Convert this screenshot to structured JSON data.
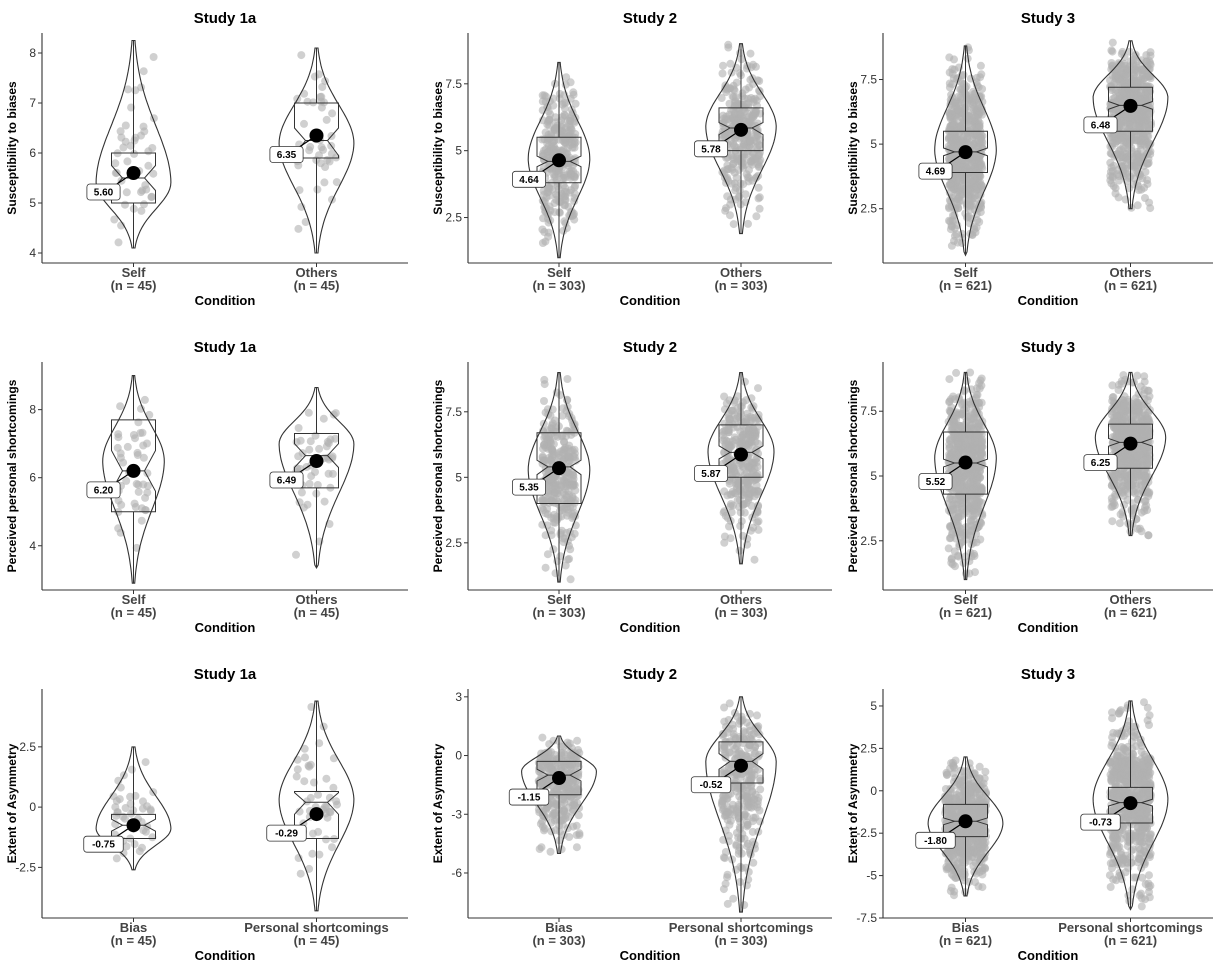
{
  "figure": {
    "x_axis_label": "Condition",
    "point_color": "#b0b0b0",
    "outline_color": "#333333",
    "mean_color": "#000000"
  },
  "chart_data": [
    {
      "type": "violin",
      "title": "Study 1a",
      "ylabel": "Susceptibility to biases",
      "ylim": [
        3.8,
        8.4
      ],
      "yticks": [
        4,
        5,
        6,
        7,
        8
      ],
      "groups": [
        {
          "name": "Self",
          "n_label": "(n = 45)",
          "mean": 5.6,
          "mean_label": "5.60",
          "q1": 5.0,
          "median": 5.5,
          "q3": 6.0,
          "notch": [
            5.25,
            5.75
          ],
          "min": 4.1,
          "max": 8.25,
          "mode": 5.4,
          "width": 0.85
        },
        {
          "name": "Others",
          "n_label": "(n = 45)",
          "mean": 6.35,
          "mean_label": "6.35",
          "q1": 5.9,
          "median": 6.25,
          "q3": 7.0,
          "notch": [
            5.95,
            6.5
          ],
          "min": 4.0,
          "max": 8.1,
          "mode": 6.2,
          "width": 0.85
        }
      ]
    },
    {
      "type": "violin",
      "title": "Study 2",
      "ylabel": "Susceptibility to biases",
      "ylim": [
        0.8,
        9.4
      ],
      "yticks": [
        2.5,
        5.0,
        7.5
      ],
      "groups": [
        {
          "name": "Self",
          "n_label": "(n = 303)",
          "mean": 4.64,
          "mean_label": "4.64",
          "q1": 3.8,
          "median": 4.6,
          "q3": 5.5,
          "notch": [
            4.4,
            4.8
          ],
          "min": 1.0,
          "max": 8.3,
          "mode": 4.7,
          "width": 0.7
        },
        {
          "name": "Others",
          "n_label": "(n = 303)",
          "mean": 5.78,
          "mean_label": "5.78",
          "q1": 5.0,
          "median": 5.85,
          "q3": 6.6,
          "notch": [
            5.6,
            6.05
          ],
          "min": 1.9,
          "max": 9.0,
          "mode": 5.9,
          "width": 0.8
        }
      ]
    },
    {
      "type": "violin",
      "title": "Study 3",
      "ylabel": "Susceptibility to biases",
      "ylim": [
        0.4,
        9.3
      ],
      "yticks": [
        2.5,
        5.0,
        7.5
      ],
      "groups": [
        {
          "name": "Self",
          "n_label": "(n = 621)",
          "mean": 4.69,
          "mean_label": "4.69",
          "q1": 3.9,
          "median": 4.7,
          "q3": 5.5,
          "notch": [
            4.55,
            4.85
          ],
          "min": 0.7,
          "max": 8.8,
          "mode": 4.8,
          "width": 0.7
        },
        {
          "name": "Others",
          "n_label": "(n = 621)",
          "mean": 6.48,
          "mean_label": "6.48",
          "q1": 5.5,
          "median": 6.5,
          "q3": 7.2,
          "notch": [
            6.35,
            6.65
          ],
          "min": 2.5,
          "max": 9.0,
          "mode": 6.8,
          "width": 0.85
        }
      ]
    },
    {
      "type": "violin",
      "title": "Study 1a",
      "ylabel": "Perceived personal shortcomings",
      "ylim": [
        2.7,
        9.4
      ],
      "yticks": [
        4,
        6,
        8
      ],
      "groups": [
        {
          "name": "Self",
          "n_label": "(n = 45)",
          "mean": 6.2,
          "mean_label": "6.20",
          "q1": 5.0,
          "median": 6.2,
          "q3": 7.7,
          "notch": [
            5.6,
            6.8
          ],
          "min": 2.9,
          "max": 9.0,
          "mode": 6.5,
          "width": 0.7
        },
        {
          "name": "Others",
          "n_label": "(n = 45)",
          "mean": 6.49,
          "mean_label": "6.49",
          "q1": 5.7,
          "median": 6.65,
          "q3": 7.3,
          "notch": [
            6.3,
            7.0
          ],
          "min": 3.35,
          "max": 8.65,
          "mode": 7.0,
          "width": 0.85
        }
      ]
    },
    {
      "type": "violin",
      "title": "Study 2",
      "ylabel": "Perceived personal shortcomings",
      "ylim": [
        0.7,
        9.4
      ],
      "yticks": [
        2.5,
        5.0,
        7.5
      ],
      "groups": [
        {
          "name": "Self",
          "n_label": "(n = 303)",
          "mean": 5.35,
          "mean_label": "5.35",
          "q1": 4.0,
          "median": 5.4,
          "q3": 6.7,
          "notch": [
            5.1,
            5.65
          ],
          "min": 1.0,
          "max": 9.0,
          "mode": 5.3,
          "width": 0.7
        },
        {
          "name": "Others",
          "n_label": "(n = 303)",
          "mean": 5.87,
          "mean_label": "5.87",
          "q1": 5.0,
          "median": 5.95,
          "q3": 7.0,
          "notch": [
            5.7,
            6.2
          ],
          "min": 1.7,
          "max": 9.0,
          "mode": 6.0,
          "width": 0.75
        }
      ]
    },
    {
      "type": "violin",
      "title": "Study 3",
      "ylabel": "Perceived personal shortcomings",
      "ylim": [
        0.6,
        9.4
      ],
      "yticks": [
        2.5,
        5.0,
        7.5
      ],
      "groups": [
        {
          "name": "Self",
          "n_label": "(n = 621)",
          "mean": 5.52,
          "mean_label": "5.52",
          "q1": 4.3,
          "median": 5.5,
          "q3": 6.7,
          "notch": [
            5.35,
            5.65
          ],
          "min": 1.0,
          "max": 9.0,
          "mode": 5.7,
          "width": 0.7
        },
        {
          "name": "Others",
          "n_label": "(n = 621)",
          "mean": 6.25,
          "mean_label": "6.25",
          "q1": 5.3,
          "median": 6.3,
          "q3": 7.0,
          "notch": [
            6.15,
            6.45
          ],
          "min": 2.7,
          "max": 9.0,
          "mode": 6.5,
          "width": 0.8
        }
      ]
    },
    {
      "type": "violin",
      "title": "Study 1a",
      "ylabel": "Extent of Asymmetry",
      "ylim": [
        -4.6,
        4.9
      ],
      "yticks": [
        -2.5,
        0.0,
        2.5
      ],
      "groups": [
        {
          "name": "Bias",
          "n_label": "(n = 45)",
          "mean": -0.75,
          "mean_label": "-0.75",
          "q1": -1.3,
          "median": -0.75,
          "q3": -0.3,
          "notch": [
            -1.0,
            -0.5
          ],
          "min": -2.6,
          "max": 2.5,
          "mode": -0.9,
          "width": 0.85
        },
        {
          "name": "Personal shortcomings",
          "n_label": "(n = 45)",
          "mean": -0.29,
          "mean_label": "-0.29",
          "q1": -1.3,
          "median": 0.2,
          "q3": 0.65,
          "notch": [
            -0.3,
            0.6
          ],
          "min": -4.3,
          "max": 4.4,
          "mode": 0.3,
          "width": 0.85
        }
      ]
    },
    {
      "type": "violin",
      "title": "Study 2",
      "ylabel": "Extent of Asymmetry",
      "ylim": [
        -8.3,
        3.4
      ],
      "yticks": [
        -6,
        -3,
        0,
        3
      ],
      "groups": [
        {
          "name": "Bias",
          "n_label": "(n = 303)",
          "mean": -1.15,
          "mean_label": "-1.15",
          "q1": -2.0,
          "median": -1.0,
          "q3": -0.3,
          "notch": [
            -1.3,
            -0.7
          ],
          "min": -5.0,
          "max": 1.0,
          "mode": -0.8,
          "width": 0.85
        },
        {
          "name": "Personal shortcomings",
          "n_label": "(n = 303)",
          "mean": -0.52,
          "mean_label": "-0.52",
          "q1": -1.4,
          "median": -0.3,
          "q3": 0.7,
          "notch": [
            -0.7,
            0.1
          ],
          "min": -8.0,
          "max": 3.0,
          "mode": -0.3,
          "width": 0.8
        }
      ]
    },
    {
      "type": "violin",
      "title": "Study 3",
      "ylabel": "Extent of Asymmetry",
      "ylim": [
        -7.5,
        6.0
      ],
      "yticks": [
        -7.5,
        -5.0,
        -2.5,
        0.0,
        2.5,
        5.0
      ],
      "groups": [
        {
          "name": "Bias",
          "n_label": "(n = 621)",
          "mean": -1.8,
          "mean_label": "-1.80",
          "q1": -2.7,
          "median": -1.8,
          "q3": -0.8,
          "notch": [
            -2.0,
            -1.6
          ],
          "min": -6.2,
          "max": 2.0,
          "mode": -1.9,
          "width": 0.85
        },
        {
          "name": "Personal shortcomings",
          "n_label": "(n = 621)",
          "mean": -0.73,
          "mean_label": "-0.73",
          "q1": -1.9,
          "median": -0.7,
          "q3": 0.2,
          "notch": [
            -0.9,
            -0.5
          ],
          "min": -7.0,
          "max": 5.3,
          "mode": -0.5,
          "width": 0.85
        }
      ]
    }
  ]
}
